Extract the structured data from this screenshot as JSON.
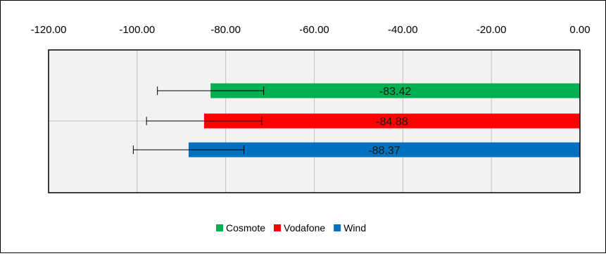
{
  "chart_data": {
    "type": "bar",
    "orientation": "horizontal",
    "title": "",
    "xlabel": "",
    "ylabel": "",
    "xlim": [
      -120,
      0
    ],
    "x_ticks": [
      "-120.00",
      "-100.00",
      "-80.00",
      "-60.00",
      "-40.00",
      "-20.00",
      "0.00"
    ],
    "x_axis_position": "top",
    "grid": true,
    "legend_position": "bottom-center",
    "series": [
      {
        "name": "Cosmote",
        "value": -83.42,
        "label": "-83.42",
        "error": 12,
        "color": "#00b050"
      },
      {
        "name": "Vodafone",
        "value": -84.88,
        "label": "-84.88",
        "error": 13,
        "color": "#ff0000"
      },
      {
        "name": "Wind",
        "value": -88.37,
        "label": "-88.37",
        "error": 12.5,
        "color": "#0070c0"
      }
    ],
    "plot_background": "#f2f2f2"
  }
}
